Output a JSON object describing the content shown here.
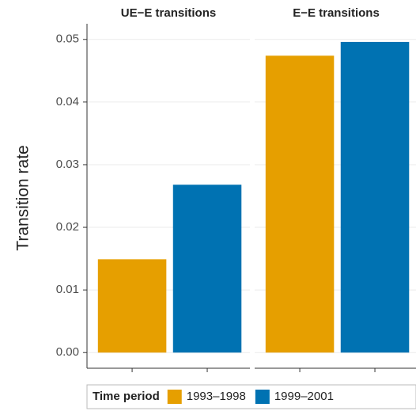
{
  "chart_data": {
    "type": "bar",
    "categories": [
      "UE−E transitions",
      "E−E transitions"
    ],
    "ylabel": "Transition rate",
    "legend_title": "Time period",
    "series": [
      {
        "name": "1993–1998",
        "color": "#E69F00",
        "values": [
          0.0149,
          0.0474
        ]
      },
      {
        "name": "1999–2001",
        "color": "#0072B2",
        "values": [
          0.0268,
          0.0496
        ]
      }
    ],
    "ylim": [
      -0.0025,
      0.0525
    ],
    "yticks": [
      {
        "value": 0,
        "label": "0.00"
      },
      0.01,
      0.02,
      0.03,
      0.04,
      0.05
    ],
    "grid": true
  }
}
